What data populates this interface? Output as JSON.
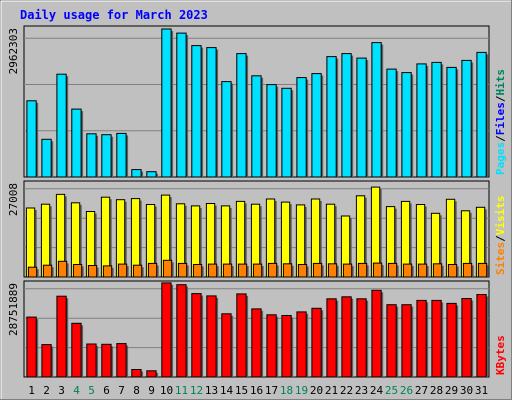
{
  "chart_data": {
    "type": "bar",
    "title": "Daily usage for March 2023",
    "categories": [
      "1",
      "2",
      "3",
      "4",
      "5",
      "6",
      "7",
      "8",
      "9",
      "10",
      "11",
      "12",
      "13",
      "14",
      "15",
      "16",
      "17",
      "18",
      "19",
      "20",
      "21",
      "22",
      "23",
      "24",
      "25",
      "26",
      "27",
      "28",
      "29",
      "30",
      "31"
    ],
    "weekend_days": [
      "4",
      "5",
      "11",
      "12",
      "18",
      "19",
      "25",
      "26"
    ],
    "panels": [
      {
        "name": "top",
        "max_label": "2962303",
        "ylim": [
          0,
          2962303
        ],
        "side_labels": [
          "Pages",
          "/",
          "Files",
          "/",
          "Hits"
        ],
        "series": [
          {
            "name": "Hits",
            "color": "#00805c",
            "values": [
              0,
              0,
              0,
              0,
              0,
              0,
              0,
              0,
              0,
              0,
              0,
              0,
              0,
              0,
              0,
              0,
              0,
              0,
              0,
              0,
              0,
              0,
              0,
              0,
              0,
              0,
              0,
              0,
              0,
              0,
              0
            ]
          },
          {
            "name": "Files",
            "color": "#0000ff",
            "values": [
              0,
              0,
              0,
              0,
              0,
              0,
              0,
              0,
              0,
              0,
              0,
              0,
              0,
              0,
              0,
              0,
              0,
              0,
              0,
              0,
              0,
              0,
              0,
              0,
              0,
              0,
              0,
              0,
              0,
              0,
              0
            ]
          },
          {
            "name": "Pages",
            "color": "#00e0ff",
            "values": [
              1525000,
              755000,
              2058000,
              1360000,
              864000,
              847000,
              872000,
              148000,
              106000,
              2962303,
              2880000,
              2630000,
              2590000,
              1910000,
              2470000,
              2025000,
              1850000,
              1775000,
              1990000,
              2070000,
              2410000,
              2470000,
              2380000,
              2690000,
              2160000,
              2090000,
              2265000,
              2295000,
              2195000,
              2335000,
              2495000
            ]
          }
        ]
      },
      {
        "name": "middle",
        "max_label": "27008",
        "ylim": [
          0,
          27008
        ],
        "side_labels": [
          "Sites",
          "/",
          "Visits"
        ],
        "series": [
          {
            "name": "Visits",
            "color": "#ffff00",
            "values": [
              19800,
              20900,
              23700,
              21300,
              18800,
              22900,
              22200,
              22500,
              20800,
              23500,
              21000,
              20400,
              21100,
              20400,
              21700,
              20900,
              22400,
              21500,
              20700,
              22400,
              20900,
              17500,
              23300,
              25800,
              20200,
              21700,
              20800,
              18300,
              22300,
              19000,
              20000
            ]
          },
          {
            "name": "Sites",
            "color": "#ff8000",
            "values": [
              2800,
              3400,
              4500,
              3600,
              3300,
              3200,
              3700,
              3400,
              3900,
              4800,
              3900,
              3600,
              3700,
              3700,
              3700,
              3700,
              3900,
              3800,
              3600,
              3900,
              3800,
              3700,
              3900,
              4000,
              3900,
              3700,
              3700,
              3800,
              3600,
              3900,
              3900
            ]
          }
        ]
      },
      {
        "name": "bottom",
        "max_label": "28751889",
        "ylim": [
          0,
          28751889
        ],
        "side_labels": [
          "KBytes"
        ],
        "series": [
          {
            "name": "KBytes",
            "color": "#ff0000",
            "values": [
              18300000,
              9900000,
              24700000,
              16400000,
              10100000,
              10000000,
              10200000,
              2300000,
              1900000,
              28751889,
              28200000,
              25500000,
              24800000,
              19300000,
              25400000,
              20800000,
              19000000,
              18800000,
              19900000,
              21000000,
              23900000,
              24500000,
              23900000,
              26500000,
              22100000,
              22100000,
              23400000,
              23400000,
              22500000,
              24000000,
              25200000
            ]
          }
        ]
      }
    ]
  },
  "colors": {
    "background": "#c0c0c0",
    "plot_background": "#c0c0c0",
    "title": "#0000ff",
    "weekday_label": "#000000",
    "weekend_label": "#00805c",
    "grid": "#808080"
  }
}
